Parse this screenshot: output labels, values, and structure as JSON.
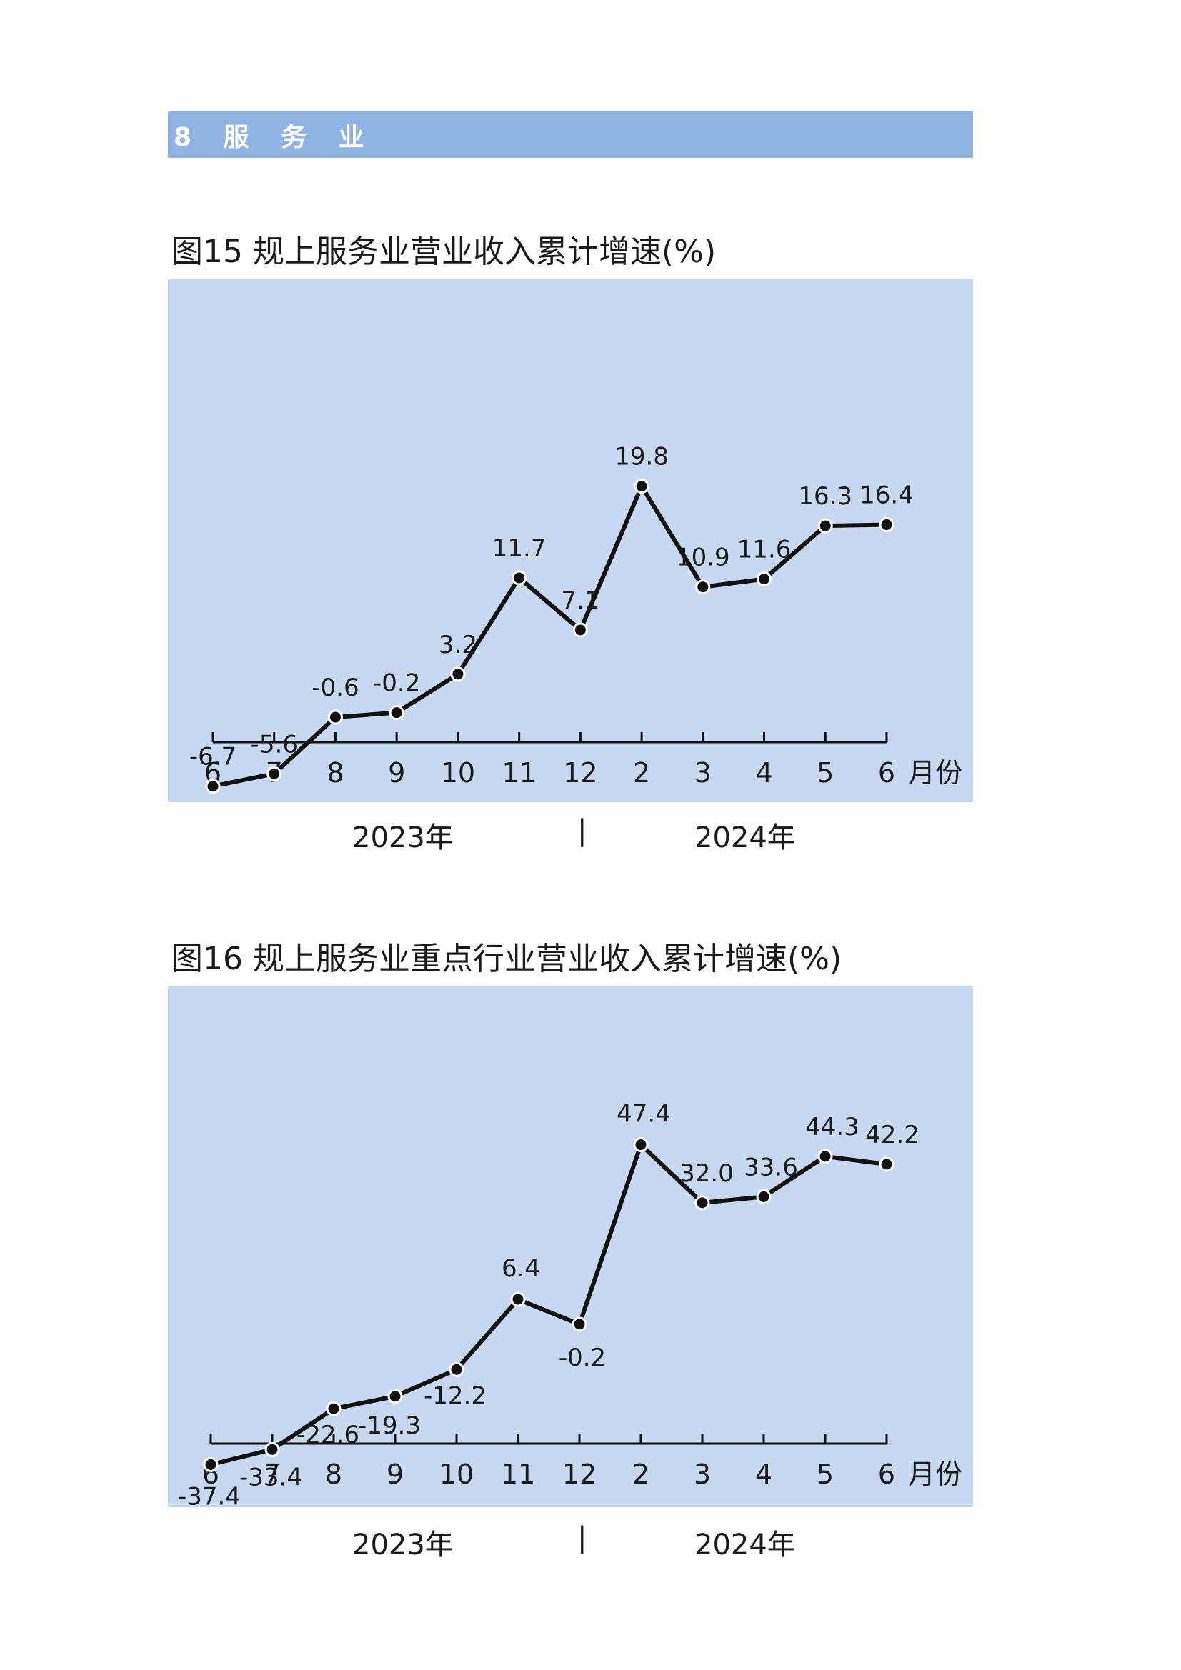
{
  "section": {
    "label": "8 服 务 业"
  },
  "charts": {
    "c15": {
      "title": "图15  规上服务业营业收入累计增速(%)"
    },
    "c16": {
      "title": "图16  规上服务业重点行业营业收入累计增速(%)"
    }
  },
  "years": {
    "y2023": "2023年",
    "separator": "|",
    "y2024": "2024年"
  },
  "chart_data": [
    {
      "type": "line",
      "title": "图15  规上服务业营业收入累计增速(%)",
      "categories": [
        "6",
        "7",
        "8",
        "9",
        "10",
        "11",
        "12",
        "2",
        "3",
        "4",
        "5",
        "6"
      ],
      "values": [
        -6.7,
        -5.6,
        -0.6,
        -0.2,
        3.2,
        11.7,
        7.1,
        19.8,
        10.9,
        11.6,
        16.3,
        16.4
      ],
      "x_unit_label": "月份",
      "year_groups": [
        "2023年",
        "2024年"
      ],
      "ylim": [
        -30,
        30
      ],
      "grid": false,
      "legend": "none",
      "colors": {
        "line": "#111111",
        "panel": "#c6d9f0"
      }
    },
    {
      "type": "line",
      "title": "图16  规上服务业重点行业营业收入累计增速(%)",
      "categories": [
        "6",
        "7",
        "8",
        "9",
        "10",
        "11",
        "12",
        "2",
        "3",
        "4",
        "5",
        "6"
      ],
      "values": [
        -37.4,
        -33.4,
        -22.6,
        -19.3,
        -12.2,
        6.4,
        -0.2,
        47.4,
        32.0,
        33.6,
        44.3,
        42.2
      ],
      "x_unit_label": "月份",
      "year_groups": [
        "2023年",
        "2024年"
      ],
      "ylim": [
        -100,
        60
      ],
      "grid": false,
      "legend": "none",
      "colors": {
        "line": "#111111",
        "panel": "#c6d9f0"
      }
    }
  ]
}
